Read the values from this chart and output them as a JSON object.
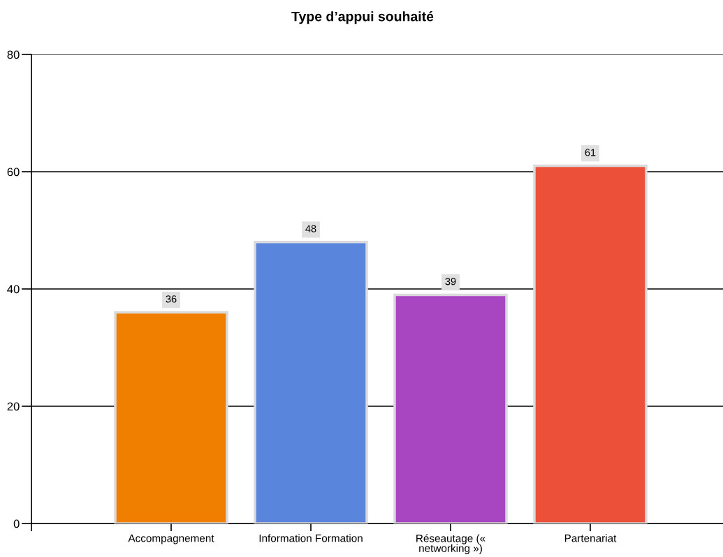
{
  "chart_data": {
    "type": "bar",
    "title": "Type d’appui souhaité",
    "categories": [
      "Accompagnement",
      "Information Formation",
      "Réseautage («\nnetworking »)",
      "Partenariat"
    ],
    "values": [
      36,
      48,
      39,
      61
    ],
    "colors": [
      "#f07f00",
      "#5a85dc",
      "#a845c0",
      "#ec5038"
    ],
    "ylim": [
      0,
      80
    ],
    "yticks": [
      0,
      20,
      40,
      60,
      80
    ],
    "grid": "y",
    "data_labels": true
  }
}
